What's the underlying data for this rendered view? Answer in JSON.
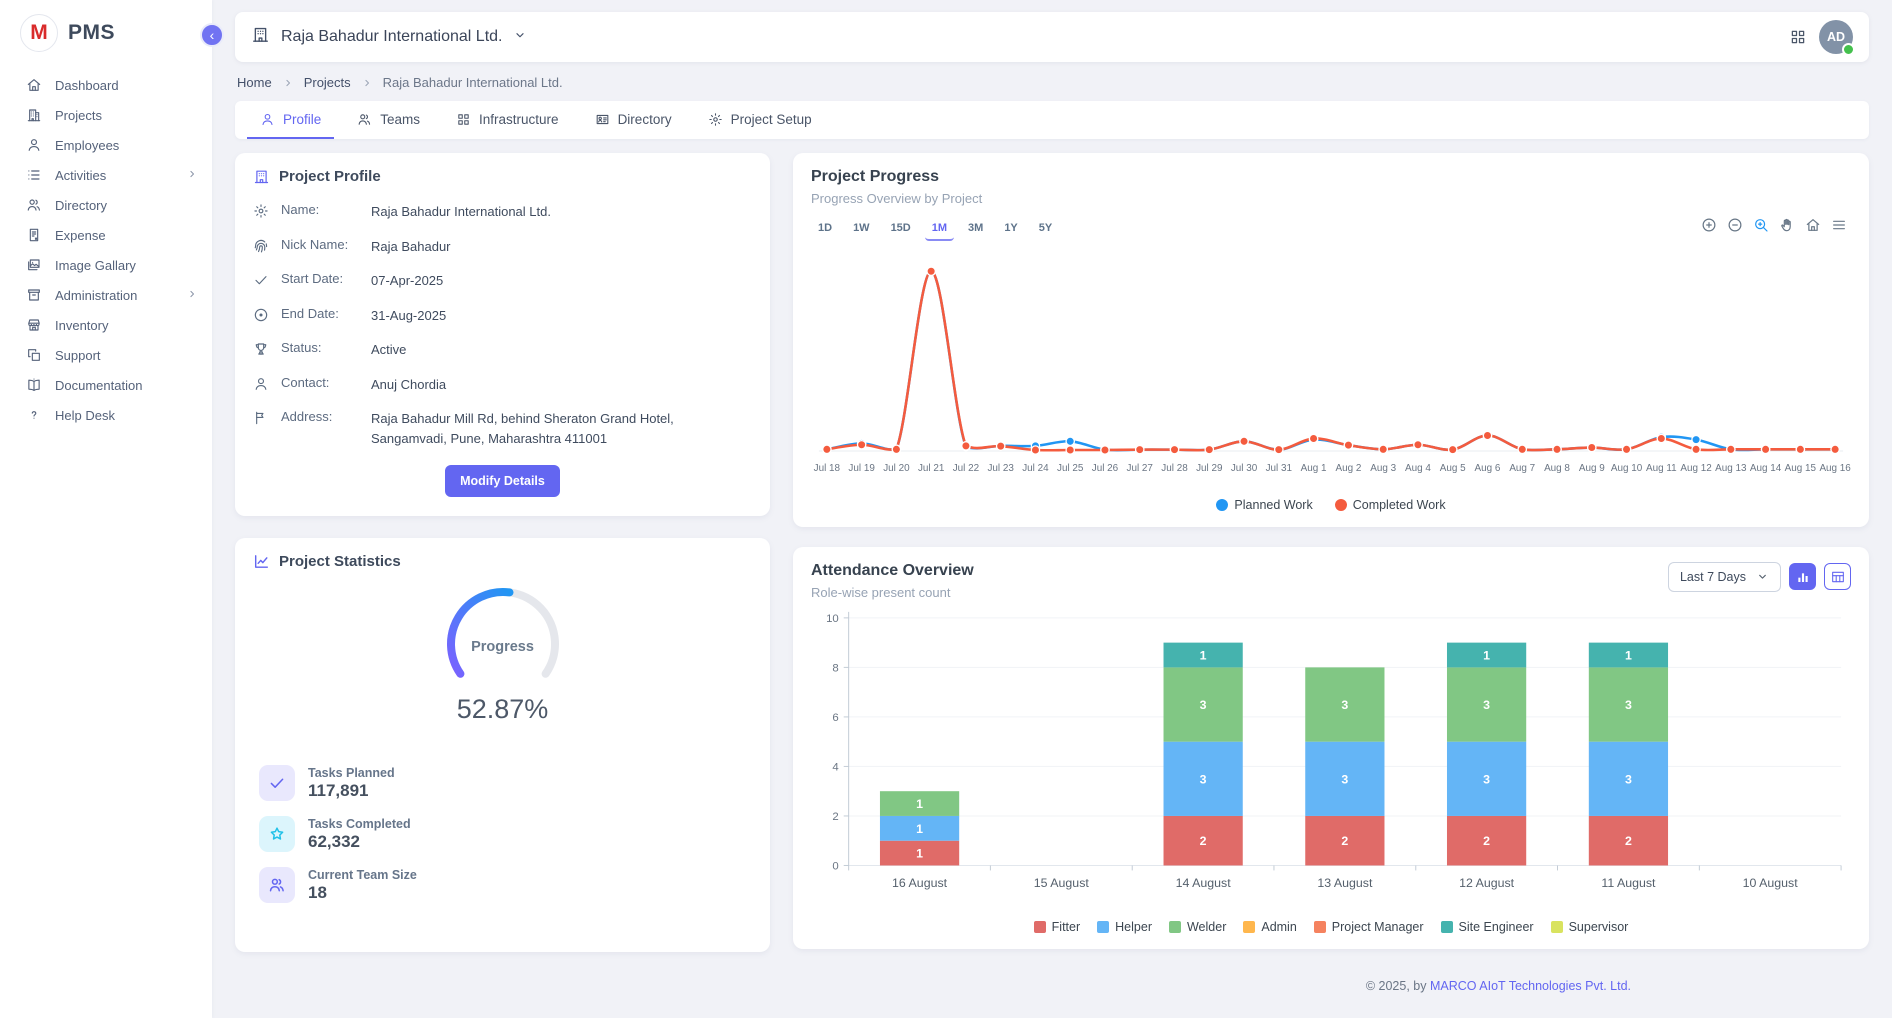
{
  "app": {
    "name": "PMS",
    "logo_letter": "M"
  },
  "sidebar": {
    "items": [
      {
        "label": "Dashboard",
        "icon": "home-icon"
      },
      {
        "label": "Projects",
        "icon": "buildings-icon"
      },
      {
        "label": "Employees",
        "icon": "person-icon"
      },
      {
        "label": "Activities",
        "icon": "list-icon",
        "has_submenu": true
      },
      {
        "label": "Directory",
        "icon": "people-icon"
      },
      {
        "label": "Expense",
        "icon": "receipt-icon"
      },
      {
        "label": "Image Gallary",
        "icon": "image-icon"
      },
      {
        "label": "Administration",
        "icon": "archive-icon",
        "has_submenu": true
      },
      {
        "label": "Inventory",
        "icon": "store-icon"
      },
      {
        "label": "Support",
        "icon": "copy-icon"
      },
      {
        "label": "Documentation",
        "icon": "book-icon"
      },
      {
        "label": "Help Desk",
        "icon": "question-icon"
      }
    ]
  },
  "header": {
    "project_name": "Raja Bahadur International Ltd.",
    "avatar_initials": "AD"
  },
  "breadcrumb": [
    "Home",
    "Projects",
    "Raja Bahadur International Ltd."
  ],
  "tabs": [
    {
      "label": "Profile",
      "icon": "person-icon",
      "active": true
    },
    {
      "label": "Teams",
      "icon": "people-icon",
      "active": false
    },
    {
      "label": "Infrastructure",
      "icon": "grid-icon",
      "active": false
    },
    {
      "label": "Directory",
      "icon": "idcard-icon",
      "active": false
    },
    {
      "label": "Project Setup",
      "icon": "gear-icon",
      "active": false
    }
  ],
  "profile_card": {
    "title": "Project Profile",
    "rows": [
      {
        "icon": "gear-icon",
        "label": "Name:",
        "value": "Raja Bahadur International Ltd."
      },
      {
        "icon": "fingerprint-icon",
        "label": "Nick Name:",
        "value": "Raja Bahadur"
      },
      {
        "icon": "check-icon",
        "label": "Start Date:",
        "value": "07-Apr-2025"
      },
      {
        "icon": "circledot-icon",
        "label": "End Date:",
        "value": "31-Aug-2025"
      },
      {
        "icon": "trophy-icon",
        "label": "Status:",
        "value": "Active"
      },
      {
        "icon": "person-icon",
        "label": "Contact:",
        "value": "Anuj Chordia"
      },
      {
        "icon": "flag-icon",
        "label": "Address:",
        "value": "Raja Bahadur Mill Rd, behind Sheraton Grand Hotel, Sangamvadi, Pune, Maharashtra 411001"
      }
    ],
    "button": "Modify Details"
  },
  "stats_card": {
    "title": "Project Statistics",
    "gauge": {
      "label": "Progress",
      "value": 52.87,
      "display": "52.87%",
      "start_color": "#7b61ff",
      "end_color": "#2196f3",
      "track_color": "#e5e7ec"
    },
    "stats": [
      {
        "icon": "check-icon",
        "label": "Tasks Planned",
        "value": "117,891",
        "theme": "purple"
      },
      {
        "icon": "star-icon",
        "label": "Tasks Completed",
        "value": "62,332",
        "theme": "cyan"
      },
      {
        "icon": "people-icon",
        "label": "Current Team Size",
        "value": "18",
        "theme": "purple"
      }
    ]
  },
  "progress_card": {
    "title": "Project Progress",
    "subtitle": "Progress Overview by Project",
    "ranges": [
      {
        "label": "1D",
        "active": false
      },
      {
        "label": "1W",
        "active": false
      },
      {
        "label": "15D",
        "active": false
      },
      {
        "label": "1M",
        "active": true
      },
      {
        "label": "3M",
        "active": false
      },
      {
        "label": "1Y",
        "active": false
      },
      {
        "label": "5Y",
        "active": false
      }
    ],
    "toolbar": [
      {
        "name": "zoom-in-icon",
        "active": false
      },
      {
        "name": "zoom-out-icon",
        "active": false
      },
      {
        "name": "selection-zoom-icon",
        "active": true
      },
      {
        "name": "pan-icon",
        "active": false
      },
      {
        "name": "reset-home-icon",
        "active": false
      },
      {
        "name": "menu-icon",
        "active": false
      }
    ]
  },
  "attendance_card": {
    "title": "Attendance Overview",
    "subtitle": "Role-wise present count",
    "filter": "Last 7 Days",
    "view_buttons": [
      "bar-chart-view",
      "table-view"
    ]
  },
  "chart_data": [
    {
      "type": "line",
      "title": "Project Progress",
      "x": [
        "Jul 18",
        "Jul 19",
        "Jul 20",
        "Jul 21",
        "Jul 22",
        "Jul 23",
        "Jul 24",
        "Jul 25",
        "Jul 26",
        "Jul 27",
        "Jul 28",
        "Jul 29",
        "Jul 30",
        "Jul 31",
        "Aug 1",
        "Aug 2",
        "Aug 3",
        "Aug 4",
        "Aug 5",
        "Aug 6",
        "Aug 7",
        "Aug 8",
        "Aug 9",
        "Aug 10",
        "Aug 11",
        "Aug 12",
        "Aug 13",
        "Aug 14",
        "Aug 15",
        "Aug 16"
      ],
      "series": [
        {
          "name": "Planned Work",
          "color": "#2196f3",
          "values": [
            0.5,
            2.2,
            0.5,
            52,
            1.3,
            1.5,
            1.5,
            2.8,
            0.4,
            0.4,
            0.4,
            0.4,
            2.8,
            0.4,
            3.3,
            1.7,
            0.5,
            1.8,
            0.4,
            4.5,
            0.5,
            0.5,
            1.0,
            0.5,
            4.0,
            3.3,
            0.5,
            0.5,
            0.5,
            0.5
          ]
        },
        {
          "name": "Completed Work",
          "color": "#f45b3e",
          "values": [
            0.5,
            1.8,
            0.5,
            52,
            1.5,
            1.4,
            0.3,
            0.3,
            0.3,
            0.4,
            0.4,
            0.4,
            2.8,
            0.4,
            3.6,
            1.7,
            0.5,
            1.8,
            0.4,
            4.5,
            0.5,
            0.5,
            1.0,
            0.5,
            3.6,
            0.5,
            0.5,
            0.5,
            0.5,
            0.5
          ]
        }
      ],
      "ylim": [
        0,
        55
      ],
      "grid": false,
      "legend_position": "bottom"
    },
    {
      "type": "bar",
      "stacked": true,
      "title": "Attendance Overview",
      "categories": [
        "16 August",
        "15 August",
        "14 August",
        "13 August",
        "12 August",
        "11 August",
        "10 August"
      ],
      "series": [
        {
          "name": "Fitter",
          "color": "#e06b68",
          "values": [
            1,
            0,
            2,
            2,
            2,
            2,
            0
          ]
        },
        {
          "name": "Helper",
          "color": "#64b5f6",
          "values": [
            1,
            0,
            3,
            3,
            3,
            3,
            0
          ]
        },
        {
          "name": "Welder",
          "color": "#81c784",
          "values": [
            1,
            0,
            3,
            3,
            3,
            3,
            0
          ]
        },
        {
          "name": "Admin",
          "color": "#ffb74d",
          "values": [
            0,
            0,
            0,
            0,
            0,
            0,
            0
          ]
        },
        {
          "name": "Project Manager",
          "color": "#f5825f",
          "values": [
            0,
            0,
            0,
            0,
            0,
            0,
            0
          ]
        },
        {
          "name": "Site Engineer",
          "color": "#45b3ae",
          "values": [
            0,
            0,
            1,
            0,
            1,
            1,
            0
          ]
        },
        {
          "name": "Supervisor",
          "color": "#d9e35f",
          "values": [
            0,
            0,
            0,
            0,
            0,
            0,
            0
          ]
        }
      ],
      "ylim": [
        0,
        10
      ],
      "yticks": [
        0,
        2,
        4,
        6,
        8,
        10
      ],
      "grid": true,
      "legend_position": "bottom"
    }
  ],
  "footer": {
    "copyright": "© 2025, by",
    "company": "MARCO AIoT Technologies Pvt. Ltd."
  }
}
